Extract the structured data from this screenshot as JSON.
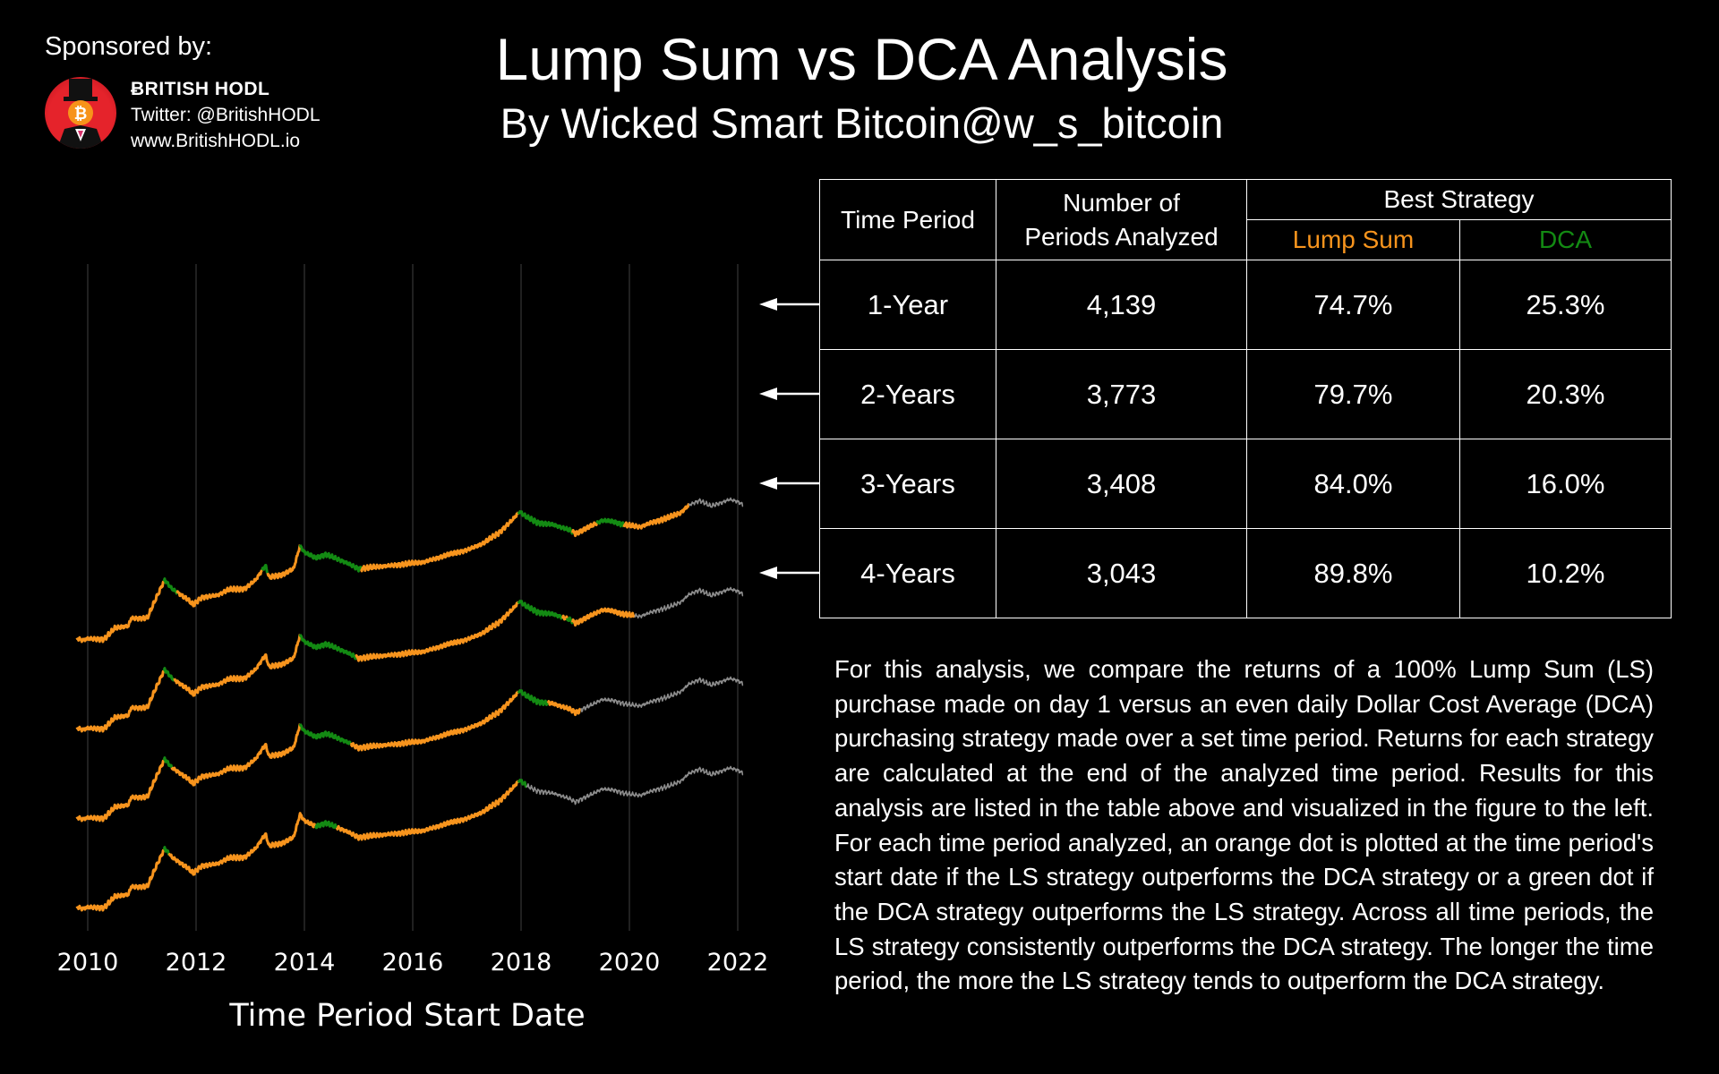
{
  "sponsor": {
    "label": "Sponsored by:",
    "name": "ɃRITISH HODL",
    "twitter": "Twitter: @BritishHODL",
    "website": "www.BritishHODL.io"
  },
  "header": {
    "title": "Lump Sum vs DCA Analysis",
    "subtitle": "By Wicked Smart Bitcoin@w_s_bitcoin"
  },
  "colors": {
    "lump_sum": "#f7941d",
    "dca": "#138a13",
    "unanalyzed": "#8c8c8c"
  },
  "table": {
    "col_time_period": "Time Period",
    "col_periods_line1": "Number of",
    "col_periods_line2": "Periods Analyzed",
    "col_best": "Best Strategy",
    "col_ls": "Lump Sum",
    "col_dca": "DCA",
    "rows": [
      {
        "period": "1-Year",
        "count": "4,139",
        "ls": "74.7%",
        "dca": "25.3%"
      },
      {
        "period": "2-Years",
        "count": "3,773",
        "ls": "79.7%",
        "dca": "20.3%"
      },
      {
        "period": "3-Years",
        "count": "3,408",
        "ls": "84.0%",
        "dca": "16.0%"
      },
      {
        "period": "4-Years",
        "count": "3,043",
        "ls": "89.8%",
        "dca": "10.2%"
      }
    ]
  },
  "description": "For this analysis, we compare the returns of a 100% Lump Sum (LS) purchase made on day 1 versus an even daily Dollar Cost Average (DCA) purchasing strategy made over a set time period. Returns for each strategy are calculated at the end of the analyzed time period. Results for this analysis are listed in the table above and visualized in the figure to the left. For each time period analyzed, an orange dot is plotted at the time period's start date if the LS strategy outperforms the DCA strategy or a green dot if the DCA strategy outperforms the LS strategy. Across all time periods, the LS strategy consistently outperforms the DCA strategy. The longer the time period, the more the LS strategy tends to outperform the DCA strategy.",
  "chart_data": {
    "type": "line",
    "xlabel": "Time Period Start Date",
    "ylabel": "",
    "x_ticks": [
      "2010",
      "2012",
      "2014",
      "2016",
      "2018",
      "2020",
      "2022"
    ],
    "xlim": [
      2009.7,
      2022.2
    ],
    "grid": "vertical",
    "y_scale": "log (unlabeled)",
    "panels": [
      "1-Year",
      "2-Years",
      "3-Years",
      "4-Years"
    ],
    "price_shape": [
      [
        2009.8,
        0
      ],
      [
        2009.9,
        -0.2
      ],
      [
        2010.0,
        -0.05
      ],
      [
        2010.3,
        -0.1
      ],
      [
        2010.5,
        0.9
      ],
      [
        2010.6,
        1.0
      ],
      [
        2010.75,
        1.1
      ],
      [
        2010.8,
        1.8
      ],
      [
        2010.95,
        1.8
      ],
      [
        2011.1,
        1.85
      ],
      [
        2011.25,
        3.5
      ],
      [
        2011.42,
        5.3
      ],
      [
        2011.55,
        4.5
      ],
      [
        2011.7,
        4.0
      ],
      [
        2011.85,
        3.5
      ],
      [
        2011.95,
        3.0
      ],
      [
        2012.1,
        3.7
      ],
      [
        2012.4,
        3.9
      ],
      [
        2012.6,
        4.4
      ],
      [
        2012.9,
        4.5
      ],
      [
        2013.1,
        5.3
      ],
      [
        2013.28,
        6.6
      ],
      [
        2013.35,
        5.5
      ],
      [
        2013.6,
        5.8
      ],
      [
        2013.8,
        6.3
      ],
      [
        2013.92,
        8.4
      ],
      [
        2014.0,
        7.8
      ],
      [
        2014.2,
        7.3
      ],
      [
        2014.4,
        7.6
      ],
      [
        2014.6,
        7.2
      ],
      [
        2014.8,
        6.8
      ],
      [
        2015.0,
        6.3
      ],
      [
        2015.4,
        6.5
      ],
      [
        2015.8,
        6.7
      ],
      [
        2016.2,
        6.9
      ],
      [
        2016.6,
        7.5
      ],
      [
        2017.0,
        8.0
      ],
      [
        2017.3,
        8.6
      ],
      [
        2017.6,
        9.6
      ],
      [
        2017.85,
        10.8
      ],
      [
        2017.97,
        11.5
      ],
      [
        2018.1,
        11.0
      ],
      [
        2018.3,
        10.5
      ],
      [
        2018.6,
        10.3
      ],
      [
        2018.9,
        9.8
      ],
      [
        2019.0,
        9.5
      ],
      [
        2019.3,
        10.2
      ],
      [
        2019.5,
        10.7
      ],
      [
        2019.7,
        10.6
      ],
      [
        2019.9,
        10.3
      ],
      [
        2020.2,
        10.1
      ],
      [
        2020.4,
        10.5
      ],
      [
        2020.7,
        10.9
      ],
      [
        2020.95,
        11.4
      ],
      [
        2021.1,
        12.1
      ],
      [
        2021.3,
        12.5
      ],
      [
        2021.5,
        12.0
      ],
      [
        2021.7,
        12.3
      ],
      [
        2021.85,
        12.6
      ],
      [
        2022.0,
        12.4
      ],
      [
        2022.1,
        12.1
      ]
    ],
    "series": [
      {
        "name": "1-Year",
        "analyzed_until": 2021.1,
        "dca_ranges": [
          [
            2011.4,
            2011.65
          ],
          [
            2013.22,
            2013.32
          ],
          [
            2013.92,
            2015.05
          ],
          [
            2017.95,
            2018.95
          ],
          [
            2019.4,
            2019.9
          ]
        ]
      },
      {
        "name": "2-Years",
        "analyzed_until": 2020.1,
        "dca_ranges": [
          [
            2011.4,
            2011.6
          ],
          [
            2013.92,
            2014.95
          ],
          [
            2017.95,
            2018.75
          ],
          [
            2018.85,
            2018.95
          ]
        ]
      },
      {
        "name": "3-Years",
        "analyzed_until": 2019.1,
        "dca_ranges": [
          [
            2011.4,
            2011.55
          ],
          [
            2013.92,
            2014.85
          ],
          [
            2017.95,
            2018.5
          ]
        ]
      },
      {
        "name": "4-Years",
        "analyzed_until": 2018.1,
        "dca_ranges": [
          [
            2011.4,
            2011.5
          ],
          [
            2014.2,
            2014.6
          ],
          [
            2017.95,
            2018.1
          ]
        ]
      }
    ]
  }
}
